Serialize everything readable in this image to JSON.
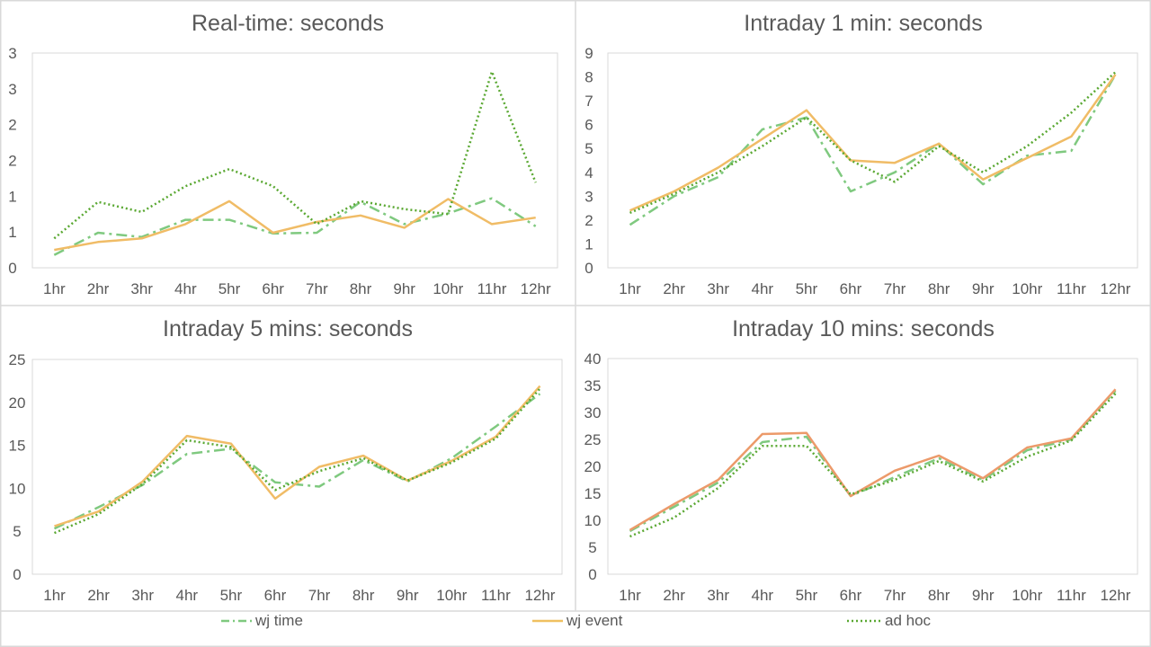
{
  "legend": [
    {
      "label": "wj time",
      "color": "#7fc97f",
      "dash": "dashdot"
    },
    {
      "label": "wj event",
      "color": "#f0c060",
      "dash": "solid"
    },
    {
      "label": "ad hoc",
      "color": "#5aa832",
      "dash": "dot"
    }
  ],
  "chart_data": [
    {
      "type": "line",
      "title": "Real-time: seconds",
      "categories": [
        "1hr",
        "2hr",
        "3hr",
        "4hr",
        "5hr",
        "6hr",
        "7hr",
        "8hr",
        "9hr",
        "10hr",
        "11hr",
        "12hr"
      ],
      "ylim": [
        0,
        3
      ],
      "yticks": [
        0,
        0.5,
        1,
        1.5,
        2,
        2.5,
        3
      ],
      "ytick_labels": [
        "0",
        "1",
        "1",
        "2",
        "2",
        "3",
        "3"
      ],
      "grid": false,
      "legend_position": "bottom",
      "series": [
        {
          "name": "wj time",
          "values": [
            0.18,
            0.49,
            0.43,
            0.67,
            0.67,
            0.48,
            0.49,
            0.92,
            0.61,
            0.76,
            0.97,
            0.58
          ]
        },
        {
          "name": "wj event",
          "values": [
            0.25,
            0.36,
            0.41,
            0.61,
            0.93,
            0.49,
            0.64,
            0.73,
            0.56,
            0.96,
            0.61,
            0.7
          ]
        },
        {
          "name": "ad hoc",
          "values": [
            0.41,
            0.92,
            0.78,
            1.14,
            1.38,
            1.14,
            0.61,
            0.93,
            0.82,
            0.75,
            2.74,
            1.19
          ]
        }
      ]
    },
    {
      "type": "line",
      "title": "Intraday 1 min: seconds",
      "categories": [
        "1hr",
        "2hr",
        "3hr",
        "4hr",
        "5hr",
        "6hr",
        "7hr",
        "8hr",
        "9hr",
        "10hr",
        "11hr",
        "12hr"
      ],
      "ylim": [
        0,
        9
      ],
      "yticks": [
        0,
        1,
        2,
        3,
        4,
        5,
        6,
        7,
        8,
        9
      ],
      "ytick_labels": [
        "0",
        "1",
        "2",
        "3",
        "4",
        "5",
        "6",
        "7",
        "8",
        "9"
      ],
      "grid": false,
      "legend_position": "bottom",
      "series": [
        {
          "name": "wj time",
          "values": [
            1.8,
            3.0,
            3.8,
            5.8,
            6.3,
            3.2,
            4.0,
            5.2,
            3.5,
            4.7,
            4.9,
            8.1
          ]
        },
        {
          "name": "wj event",
          "values": [
            2.4,
            3.2,
            4.2,
            5.4,
            6.6,
            4.5,
            4.4,
            5.2,
            3.7,
            4.6,
            5.5,
            8.1
          ]
        },
        {
          "name": "ad hoc",
          "values": [
            2.3,
            3.1,
            4.0,
            5.1,
            6.3,
            4.5,
            3.6,
            5.1,
            4.0,
            5.1,
            6.5,
            8.2
          ]
        }
      ]
    },
    {
      "type": "line",
      "title": "Intraday 5 mins: seconds",
      "categories": [
        "1hr",
        "2hr",
        "3hr",
        "4hr",
        "5hr",
        "6hr",
        "7hr",
        "8hr",
        "9hr",
        "10hr",
        "11hr",
        "12hr"
      ],
      "ylim": [
        0,
        25
      ],
      "yticks": [
        0,
        5,
        10,
        15,
        20,
        25
      ],
      "ytick_labels": [
        "0",
        "5",
        "10",
        "15",
        "20",
        "25"
      ],
      "grid": false,
      "legend_position": "bottom",
      "series": [
        {
          "name": "wj time",
          "values": [
            5.3,
            7.8,
            10.4,
            14.0,
            14.6,
            10.7,
            10.2,
            13.3,
            10.8,
            13.5,
            17.2,
            21.0
          ]
        },
        {
          "name": "wj event",
          "values": [
            5.6,
            7.3,
            10.8,
            16.1,
            15.2,
            8.8,
            12.5,
            13.8,
            10.9,
            13.2,
            16.0,
            21.9
          ]
        },
        {
          "name": "ad hoc",
          "values": [
            4.8,
            7.0,
            10.5,
            15.6,
            14.8,
            9.8,
            12.0,
            13.5,
            10.9,
            13.0,
            15.8,
            21.6
          ]
        }
      ]
    },
    {
      "type": "line",
      "title": "Intraday 10 mins: seconds",
      "categories": [
        "1hr",
        "2hr",
        "3hr",
        "4hr",
        "5hr",
        "6hr",
        "7hr",
        "8hr",
        "9hr",
        "10hr",
        "11hr",
        "12hr"
      ],
      "ylim": [
        0,
        40
      ],
      "yticks": [
        0,
        5,
        10,
        15,
        20,
        25,
        30,
        35,
        40
      ],
      "ytick_labels": [
        "0",
        "5",
        "10",
        "15",
        "20",
        "25",
        "30",
        "35",
        "40"
      ],
      "grid": false,
      "legend_position": "bottom",
      "series": [
        {
          "name": "wj time",
          "values": [
            8.0,
            12.5,
            17.0,
            24.5,
            25.5,
            14.5,
            18.0,
            21.5,
            17.5,
            23.0,
            25.0,
            34.0
          ]
        },
        {
          "name": "wj event",
          "values": [
            8.2,
            13.0,
            17.5,
            26.0,
            26.2,
            14.5,
            19.2,
            22.0,
            17.8,
            23.5,
            25.2,
            34.3
          ]
        },
        {
          "name": "ad hoc",
          "values": [
            7.0,
            10.5,
            16.0,
            23.8,
            23.8,
            14.8,
            17.5,
            21.0,
            17.2,
            21.8,
            24.8,
            33.5
          ]
        }
      ]
    }
  ]
}
